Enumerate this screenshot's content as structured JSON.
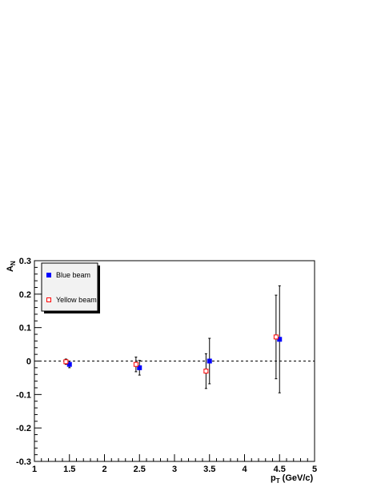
{
  "chart_data": {
    "type": "scatter",
    "xlabel": "p",
    "xlabel_sub": "T",
    "xlabel_unit": " (GeV/c)",
    "ylabel": "A",
    "ylabel_sub": "N",
    "xlim": [
      1,
      5
    ],
    "ylim": [
      -0.3,
      0.3
    ],
    "x_ticks": [
      1,
      1.5,
      2,
      2.5,
      3,
      3.5,
      4,
      4.5,
      5
    ],
    "x_tick_labels": [
      "1",
      "1.5",
      "2",
      "2.5",
      "3",
      "3.5",
      "4",
      "4.5",
      "5"
    ],
    "y_ticks": [
      -0.3,
      -0.2,
      -0.1,
      0,
      0.1,
      0.2,
      0.3
    ],
    "y_tick_labels": [
      "-0.3",
      "-0.2",
      "-0.1",
      "0",
      "0.1",
      "0.2",
      "0.3"
    ],
    "zero_line": true,
    "grid": false,
    "legend_position": "top-left",
    "series": [
      {
        "name": "Blue beam",
        "marker": "filled-square",
        "color": "#0000ff",
        "x": [
          1.5,
          2.5,
          3.5,
          4.5
        ],
        "y": [
          -0.01,
          -0.02,
          0.0,
          0.065
        ],
        "err": [
          0.01,
          0.022,
          0.068,
          0.16
        ]
      },
      {
        "name": "Yellow beam",
        "marker": "open-square",
        "color": "#ff0000",
        "x": [
          1.45,
          2.45,
          3.45,
          4.45
        ],
        "y": [
          -0.002,
          -0.01,
          -0.03,
          0.072
        ],
        "err": [
          0.008,
          0.022,
          0.052,
          0.125
        ]
      }
    ]
  }
}
